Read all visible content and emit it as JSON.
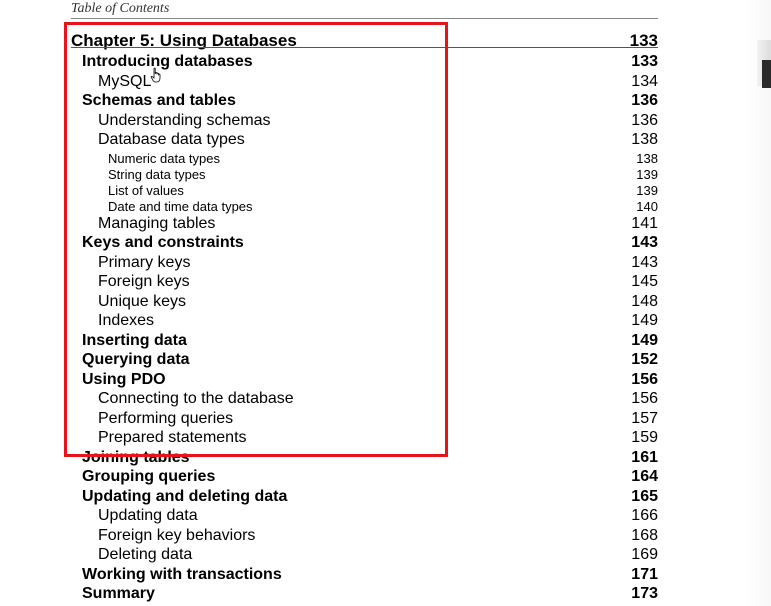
{
  "header": {
    "running_title": "Table of Contents"
  },
  "toc": [
    {
      "level": 0,
      "title": "Chapter 5: Using Databases",
      "page": "133"
    },
    {
      "level": 1,
      "title": "Introducing databases",
      "page": "133"
    },
    {
      "level": 2,
      "title": "MySQL",
      "page": "134"
    },
    {
      "level": 1,
      "title": "Schemas and tables",
      "page": "136"
    },
    {
      "level": 2,
      "title": "Understanding schemas",
      "page": "136"
    },
    {
      "level": 2,
      "title": "Database data types",
      "page": "138"
    },
    {
      "level": 3,
      "title": "Numeric data types",
      "page": "138"
    },
    {
      "level": 3,
      "title": "String data types",
      "page": "139"
    },
    {
      "level": 3,
      "title": "List of values",
      "page": "139"
    },
    {
      "level": 3,
      "title": "Date and time data types",
      "page": "140"
    },
    {
      "level": 2,
      "title": "Managing tables",
      "page": "141"
    },
    {
      "level": 1,
      "title": "Keys and constraints",
      "page": "143"
    },
    {
      "level": 2,
      "title": "Primary keys",
      "page": "143"
    },
    {
      "level": 2,
      "title": "Foreign keys",
      "page": "145"
    },
    {
      "level": 2,
      "title": "Unique keys",
      "page": "148"
    },
    {
      "level": 2,
      "title": "Indexes",
      "page": "149"
    },
    {
      "level": 1,
      "title": "Inserting data",
      "page": "149"
    },
    {
      "level": 1,
      "title": "Querying data",
      "page": "152"
    },
    {
      "level": 1,
      "title": "Using PDO",
      "page": "156"
    },
    {
      "level": 2,
      "title": "Connecting to the database",
      "page": "156"
    },
    {
      "level": 2,
      "title": "Performing queries",
      "page": "157"
    },
    {
      "level": 2,
      "title": "Prepared statements",
      "page": "159"
    },
    {
      "level": 1,
      "title": "Joining tables",
      "page": "161"
    },
    {
      "level": 1,
      "title": "Grouping queries",
      "page": "164"
    },
    {
      "level": 1,
      "title": "Updating and deleting data",
      "page": "165"
    },
    {
      "level": 2,
      "title": "Updating data",
      "page": "166"
    },
    {
      "level": 2,
      "title": "Foreign key behaviors",
      "page": "168"
    },
    {
      "level": 2,
      "title": "Deleting data",
      "page": "169"
    },
    {
      "level": 1,
      "title": "Working with transactions",
      "page": "171"
    },
    {
      "level": 1,
      "title": "Summary",
      "page": "173"
    }
  ],
  "highlight": {
    "color": "#e8141c"
  },
  "cursor": {
    "icon": "hand-pointer-icon"
  }
}
